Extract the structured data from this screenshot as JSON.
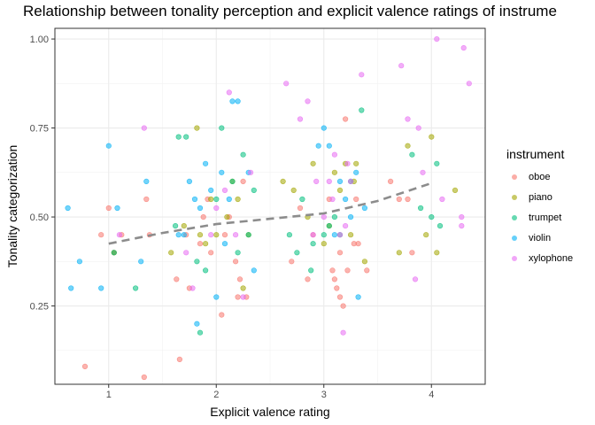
{
  "chart_data": {
    "type": "scatter",
    "title": "Relationship between tonality perception and explicit valence ratings of instrume",
    "xlabel": "Explicit valence rating",
    "ylabel": "Tonality categorization",
    "xlim": [
      0.5,
      4.5
    ],
    "ylim": [
      0.03,
      1.03
    ],
    "x_ticks": [
      1,
      2,
      3,
      4
    ],
    "x_tick_labels": [
      "1",
      "2",
      "3",
      "4"
    ],
    "y_ticks": [
      0.25,
      0.5,
      0.75,
      1.0
    ],
    "y_tick_labels": [
      "0.25",
      "0.50",
      "0.75",
      "1.00"
    ],
    "grid": true,
    "legend": {
      "title": "instrument",
      "position": "right"
    },
    "series": [
      {
        "name": "oboe",
        "color": "#F8766D",
        "points": [
          [
            0.78,
            0.08
          ],
          [
            0.93,
            0.45
          ],
          [
            1.0,
            0.525
          ],
          [
            1.05,
            0.4
          ],
          [
            1.12,
            0.45
          ],
          [
            1.33,
            0.05
          ],
          [
            1.35,
            0.55
          ],
          [
            1.38,
            0.45
          ],
          [
            1.63,
            0.325
          ],
          [
            1.66,
            0.1
          ],
          [
            1.72,
            0.45
          ],
          [
            1.75,
            0.3
          ],
          [
            1.85,
            0.425
          ],
          [
            1.88,
            0.5
          ],
          [
            1.92,
            0.55
          ],
          [
            1.95,
            0.4
          ],
          [
            2.05,
            0.225
          ],
          [
            2.08,
            0.45
          ],
          [
            2.12,
            0.5
          ],
          [
            2.18,
            0.375
          ],
          [
            2.2,
            0.275
          ],
          [
            2.22,
            0.325
          ],
          [
            2.25,
            0.6
          ],
          [
            2.28,
            0.275
          ],
          [
            2.7,
            0.375
          ],
          [
            2.78,
            0.525
          ],
          [
            2.85,
            0.325
          ],
          [
            2.9,
            0.45
          ],
          [
            3.05,
            0.55
          ],
          [
            3.08,
            0.35
          ],
          [
            3.1,
            0.325
          ],
          [
            3.12,
            0.3
          ],
          [
            3.15,
            0.275
          ],
          [
            3.15,
            0.4
          ],
          [
            3.18,
            0.25
          ],
          [
            3.2,
            0.775
          ],
          [
            3.22,
            0.35
          ],
          [
            3.28,
            0.425
          ],
          [
            3.3,
            0.55
          ],
          [
            3.32,
            0.425
          ],
          [
            3.4,
            0.35
          ],
          [
            3.62,
            0.6
          ],
          [
            3.7,
            0.55
          ],
          [
            3.78,
            0.55
          ],
          [
            3.82,
            0.4
          ]
        ]
      },
      {
        "name": "piano",
        "color": "#A3A500",
        "points": [
          [
            1.05,
            0.4
          ],
          [
            1.58,
            0.4
          ],
          [
            1.7,
            0.475
          ],
          [
            1.82,
            0.75
          ],
          [
            1.85,
            0.45
          ],
          [
            1.9,
            0.425
          ],
          [
            1.95,
            0.55
          ],
          [
            2.0,
            0.45
          ],
          [
            2.1,
            0.5
          ],
          [
            2.15,
            0.6
          ],
          [
            2.2,
            0.55
          ],
          [
            2.25,
            0.3
          ],
          [
            2.3,
            0.45
          ],
          [
            2.62,
            0.6
          ],
          [
            2.72,
            0.575
          ],
          [
            2.85,
            0.5
          ],
          [
            2.9,
            0.65
          ],
          [
            3.0,
            0.425
          ],
          [
            3.05,
            0.475
          ],
          [
            3.1,
            0.625
          ],
          [
            3.15,
            0.575
          ],
          [
            3.2,
            0.65
          ],
          [
            3.25,
            0.45
          ],
          [
            3.28,
            0.6
          ],
          [
            3.3,
            0.65
          ],
          [
            3.38,
            0.375
          ],
          [
            3.7,
            0.4
          ],
          [
            3.78,
            0.7
          ],
          [
            3.95,
            0.45
          ],
          [
            4.0,
            0.725
          ],
          [
            4.05,
            0.4
          ],
          [
            4.22,
            0.575
          ]
        ]
      },
      {
        "name": "trumpet",
        "color": "#00BF7D",
        "points": [
          [
            1.05,
            0.4
          ],
          [
            1.25,
            0.3
          ],
          [
            1.62,
            0.475
          ],
          [
            1.65,
            0.725
          ],
          [
            1.72,
            0.725
          ],
          [
            1.82,
            0.375
          ],
          [
            1.85,
            0.175
          ],
          [
            1.9,
            0.35
          ],
          [
            2.0,
            0.55
          ],
          [
            2.05,
            0.75
          ],
          [
            2.15,
            0.6
          ],
          [
            2.2,
            0.4
          ],
          [
            2.25,
            0.675
          ],
          [
            2.3,
            0.45
          ],
          [
            2.35,
            0.575
          ],
          [
            2.68,
            0.45
          ],
          [
            2.75,
            0.4
          ],
          [
            2.8,
            0.55
          ],
          [
            2.88,
            0.35
          ],
          [
            2.9,
            0.425
          ],
          [
            3.0,
            0.45
          ],
          [
            3.05,
            0.475
          ],
          [
            3.1,
            0.5
          ],
          [
            3.15,
            0.45
          ],
          [
            3.25,
            0.6
          ],
          [
            3.35,
            0.8
          ],
          [
            3.82,
            0.675
          ],
          [
            3.9,
            0.525
          ],
          [
            4.0,
            0.5
          ],
          [
            4.05,
            0.65
          ],
          [
            4.08,
            0.475
          ]
        ]
      },
      {
        "name": "violin",
        "color": "#00B0F6",
        "points": [
          [
            0.62,
            0.525
          ],
          [
            0.65,
            0.3
          ],
          [
            0.73,
            0.375
          ],
          [
            0.93,
            0.3
          ],
          [
            1.0,
            0.7
          ],
          [
            1.08,
            0.525
          ],
          [
            1.3,
            0.375
          ],
          [
            1.35,
            0.6
          ],
          [
            1.65,
            0.45
          ],
          [
            1.7,
            0.45
          ],
          [
            1.75,
            0.6
          ],
          [
            1.8,
            0.55
          ],
          [
            1.82,
            0.2
          ],
          [
            1.85,
            0.525
          ],
          [
            1.9,
            0.65
          ],
          [
            1.95,
            0.575
          ],
          [
            2.0,
            0.275
          ],
          [
            2.05,
            0.625
          ],
          [
            2.08,
            0.425
          ],
          [
            2.12,
            0.55
          ],
          [
            2.15,
            0.825
          ],
          [
            2.2,
            0.825
          ],
          [
            2.3,
            0.625
          ],
          [
            2.35,
            0.35
          ],
          [
            2.95,
            0.7
          ],
          [
            3.0,
            0.75
          ],
          [
            3.05,
            0.7
          ],
          [
            3.1,
            0.45
          ],
          [
            3.15,
            0.6
          ],
          [
            3.2,
            0.55
          ],
          [
            3.25,
            0.5
          ],
          [
            3.3,
            0.625
          ],
          [
            3.32,
            0.275
          ],
          [
            3.38,
            0.525
          ]
        ]
      },
      {
        "name": "xylophone",
        "color": "#E76BF3",
        "points": [
          [
            1.1,
            0.45
          ],
          [
            1.33,
            0.75
          ],
          [
            1.72,
            0.4
          ],
          [
            1.78,
            0.3
          ],
          [
            1.95,
            0.45
          ],
          [
            2.0,
            0.525
          ],
          [
            2.08,
            0.575
          ],
          [
            2.12,
            0.85
          ],
          [
            2.18,
            0.45
          ],
          [
            2.25,
            0.275
          ],
          [
            2.32,
            0.625
          ],
          [
            2.65,
            0.875
          ],
          [
            2.78,
            0.775
          ],
          [
            2.85,
            0.825
          ],
          [
            2.9,
            0.45
          ],
          [
            2.93,
            0.6
          ],
          [
            3.0,
            0.5
          ],
          [
            3.05,
            0.6
          ],
          [
            3.08,
            0.55
          ],
          [
            3.1,
            0.675
          ],
          [
            3.15,
            0.45
          ],
          [
            3.18,
            0.175
          ],
          [
            3.2,
            0.475
          ],
          [
            3.22,
            0.65
          ],
          [
            3.25,
            0.6
          ],
          [
            3.35,
            0.9
          ],
          [
            3.72,
            0.925
          ],
          [
            3.78,
            0.775
          ],
          [
            3.85,
            0.325
          ],
          [
            3.88,
            0.75
          ],
          [
            3.92,
            0.625
          ],
          [
            4.05,
            1.0
          ],
          [
            4.1,
            0.55
          ],
          [
            4.28,
            0.5
          ],
          [
            4.3,
            0.975
          ],
          [
            4.35,
            0.875
          ],
          [
            4.28,
            0.475
          ]
        ]
      }
    ],
    "trend_line": {
      "color": "#8c8c8c",
      "style": "dashed",
      "points": [
        [
          1.0,
          0.425
        ],
        [
          1.5,
          0.455
        ],
        [
          2.0,
          0.48
        ],
        [
          2.5,
          0.495
        ],
        [
          3.0,
          0.51
        ],
        [
          3.5,
          0.545
        ],
        [
          4.0,
          0.595
        ]
      ]
    }
  }
}
